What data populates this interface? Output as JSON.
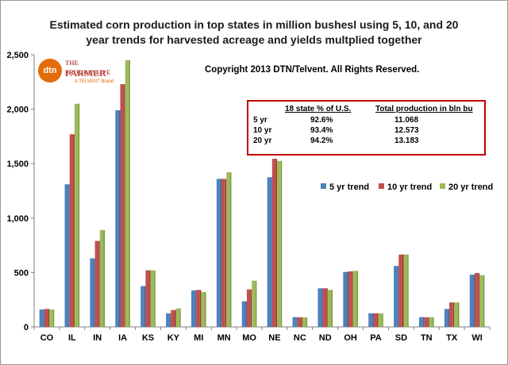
{
  "title_line1": "Estimated corn production in top states in million bushesl using 5, 10, and 20",
  "title_line2": "year trends for harvested acreage and yields multplied together",
  "copyright": "Copyright 2013 DTN/Telvent. All Rights Reserved.",
  "logo": {
    "circle": "dtn",
    "brand1": "THE PROGRESSIVE",
    "brand2": "FARMER",
    "sub": "A TELVENT Brand"
  },
  "infobox": {
    "header1": "18 state % of U.S.",
    "header2": "Total production in bln bu",
    "rows": [
      {
        "label": "5 yr",
        "pct": "92.6%",
        "total": "11.068"
      },
      {
        "label": "10 yr",
        "pct": "93.4%",
        "total": "12.573"
      },
      {
        "label": "20 yr",
        "pct": "94.2%",
        "total": "13.183"
      }
    ]
  },
  "colors": {
    "5yr": "#4f81bd",
    "10yr": "#c0504d",
    "20yr": "#9bbb59"
  },
  "chart_data": {
    "type": "bar",
    "title": "Estimated corn production in top states in million bushesl using 5, 10, and 20 year trends for harvested acreage and yields multplied together",
    "xlabel": "",
    "ylabel": "",
    "ylim": [
      0,
      2500
    ],
    "yticks": [
      0,
      500,
      1000,
      1500,
      2000,
      2500
    ],
    "ytick_labels": [
      "0",
      "500",
      "1,000",
      "1,500",
      "2,000",
      "2,500"
    ],
    "grid": false,
    "legend_position": "right",
    "categories": [
      "CO",
      "IL",
      "IN",
      "IA",
      "KS",
      "KY",
      "MI",
      "MN",
      "MO",
      "NE",
      "NC",
      "ND",
      "OH",
      "PA",
      "SD",
      "TN",
      "TX",
      "WI"
    ],
    "series": [
      {
        "name": "5 yr trend",
        "values": [
          160,
          1310,
          630,
          1990,
          375,
          125,
          335,
          1360,
          235,
          1375,
          90,
          355,
          505,
          125,
          560,
          90,
          165,
          480
        ]
      },
      {
        "name": "10 yr trend",
        "values": [
          165,
          1770,
          790,
          2230,
          520,
          155,
          340,
          1360,
          345,
          1545,
          88,
          355,
          510,
          125,
          665,
          88,
          225,
          495
        ]
      },
      {
        "name": "20 yr trend",
        "values": [
          160,
          2050,
          890,
          2450,
          520,
          170,
          320,
          1420,
          425,
          1525,
          88,
          340,
          515,
          125,
          665,
          90,
          225,
          475
        ]
      }
    ]
  }
}
